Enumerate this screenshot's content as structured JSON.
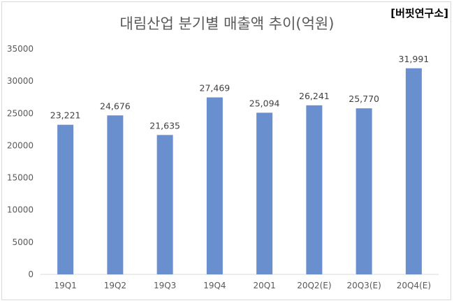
{
  "chart_data": {
    "type": "bar",
    "title": "대림산업 분기별 매출액 추이(억원)",
    "source_label": "[버핏연구소]",
    "categories": [
      "19Q1",
      "19Q2",
      "19Q3",
      "19Q4",
      "20Q1",
      "20Q2(E)",
      "20Q3(E)",
      "20Q4(E)"
    ],
    "values": [
      23221,
      24676,
      21635,
      27469,
      25094,
      26241,
      25770,
      31991
    ],
    "value_labels": [
      "23,221",
      "24,676",
      "21,635",
      "27,469",
      "25,094",
      "26,241",
      "25,770",
      "31,991"
    ],
    "y_ticks": [
      "0",
      "5000",
      "10000",
      "15000",
      "20000",
      "25000",
      "30000",
      "35000"
    ],
    "ylim": [
      0,
      35000
    ],
    "xlabel": "",
    "ylabel": "",
    "grid": false,
    "legend": false,
    "bar_color": "#6a8fcf"
  }
}
